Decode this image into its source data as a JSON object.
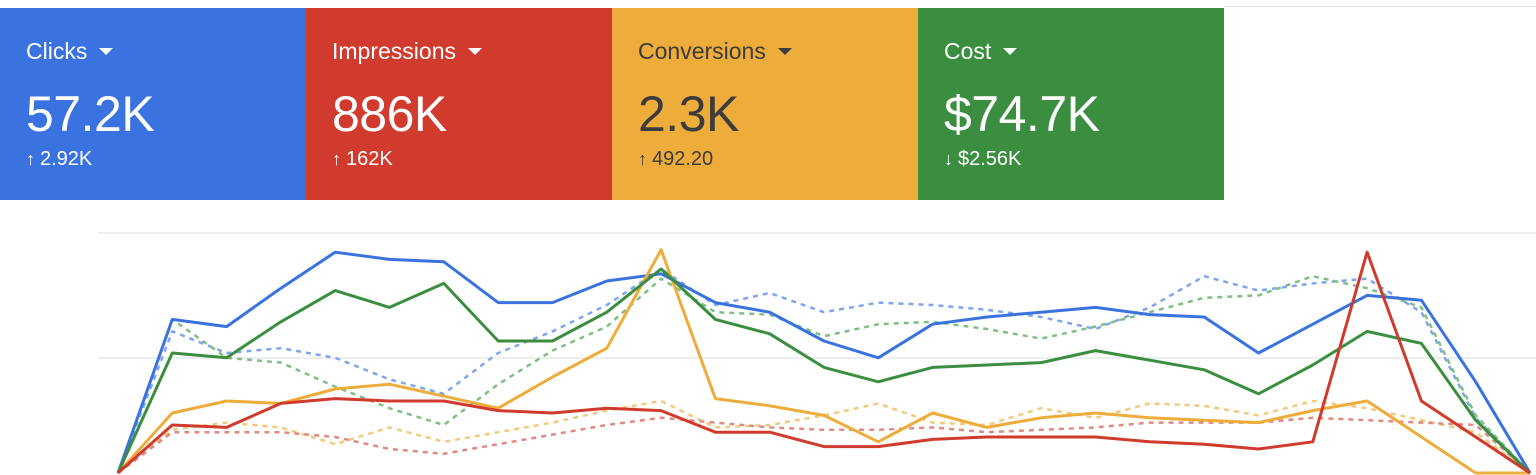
{
  "cards": [
    {
      "label": "Clicks",
      "value": "57.2K",
      "change": "2.92K",
      "direction": "up",
      "arrow": "↑",
      "color": "#3a73df",
      "text_color": "#ffffff"
    },
    {
      "label": "Impressions",
      "value": "886K",
      "change": "162K",
      "direction": "up",
      "arrow": "↑",
      "color": "#d03b2d",
      "text_color": "#ffffff"
    },
    {
      "label": "Conversions",
      "value": "2.3K",
      "change": "492.20",
      "direction": "up",
      "arrow": "↑",
      "color": "#eeac3b",
      "text_color": "#3c3c3c"
    },
    {
      "label": "Cost",
      "value": "$74.7K",
      "change": "$2.56K",
      "direction": "down",
      "arrow": "↓",
      "color": "#3b8e3f",
      "text_color": "#ffffff"
    }
  ],
  "chart_data": {
    "type": "line",
    "x": [
      1,
      2,
      3,
      4,
      5,
      6,
      7,
      8,
      9,
      10,
      11,
      12,
      13,
      14,
      15,
      16,
      17,
      18,
      19,
      20,
      21,
      22,
      23,
      24,
      25,
      26,
      27
    ],
    "ylim": [
      0,
      100
    ],
    "grid": true,
    "series": [
      {
        "metric": "Clicks",
        "period": "current",
        "color": "#3a73df",
        "style": "solid",
        "values": [
          0,
          64,
          61,
          77,
          92,
          89,
          88,
          71,
          71,
          80,
          83,
          71,
          67,
          55,
          48,
          62,
          65,
          67,
          69,
          66,
          65,
          50,
          62,
          74,
          72,
          38,
          0
        ]
      },
      {
        "metric": "Conversions",
        "period": "current",
        "color": "#eeac3b",
        "style": "solid",
        "values": [
          0,
          25,
          30,
          29,
          35,
          37,
          32,
          27,
          40,
          52,
          93,
          31,
          28,
          24,
          13,
          25,
          19,
          23,
          25,
          23,
          22,
          21,
          26,
          30,
          15,
          0,
          0
        ]
      },
      {
        "metric": "Cost",
        "period": "current",
        "color": "#3b8e3f",
        "style": "solid",
        "values": [
          0,
          50,
          48,
          63,
          76,
          69,
          79,
          55,
          55,
          67,
          85,
          64,
          58,
          44,
          38,
          44,
          45,
          46,
          51,
          47,
          43,
          33,
          45,
          59,
          54,
          22,
          0
        ]
      },
      {
        "metric": "Impressions",
        "period": "current",
        "color": "#d03b2d",
        "style": "solid",
        "values": [
          0,
          20,
          19,
          29,
          31,
          30,
          30,
          26,
          25,
          27,
          26,
          17,
          17,
          11,
          11,
          14,
          15,
          15,
          15,
          13,
          12,
          10,
          13,
          92,
          30,
          15,
          0
        ]
      },
      {
        "metric": "Clicks",
        "period": "previous",
        "color": "#7fa6ec",
        "style": "dashed",
        "values": [
          0,
          59,
          50,
          52,
          48,
          39,
          33,
          50,
          59,
          70,
          85,
          70,
          75,
          67,
          71,
          70,
          68,
          65,
          60,
          69,
          82,
          76,
          79,
          81,
          67,
          23,
          0
        ]
      },
      {
        "metric": "Cost",
        "period": "previous",
        "color": "#7fbf82",
        "style": "dashed",
        "values": [
          0,
          64,
          48,
          46,
          36,
          27,
          20,
          37,
          51,
          61,
          81,
          67,
          66,
          57,
          62,
          63,
          60,
          56,
          61,
          67,
          73,
          74,
          82,
          77,
          69,
          24,
          0
        ]
      },
      {
        "metric": "Conversions",
        "period": "previous",
        "color": "#f3c97c",
        "style": "dashed",
        "values": [
          0,
          18,
          21,
          19,
          12,
          19,
          13,
          17,
          21,
          26,
          30,
          19,
          20,
          24,
          29,
          21,
          20,
          27,
          23,
          29,
          28,
          24,
          30,
          27,
          22,
          17,
          0
        ]
      },
      {
        "metric": "Impressions",
        "period": "previous",
        "color": "#e08b82",
        "style": "dashed",
        "values": [
          0,
          17,
          17,
          17,
          15,
          10,
          8,
          12,
          16,
          20,
          23,
          21,
          19,
          18,
          18,
          19,
          17,
          18,
          19,
          21,
          21,
          21,
          23,
          22,
          21,
          20,
          0
        ]
      }
    ]
  }
}
